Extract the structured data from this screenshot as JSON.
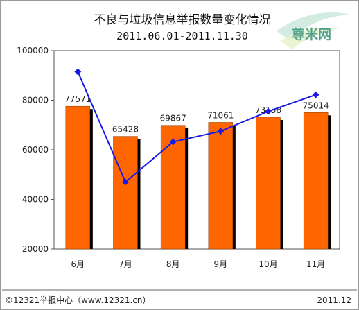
{
  "chart_data": {
    "type": "bar",
    "title": "不良与垃圾信息举报数量变化情况",
    "subtitle": "2011.06.01-2011.11.30",
    "categories": [
      "6月",
      "7月",
      "8月",
      "9月",
      "10月",
      "11月"
    ],
    "series": [
      {
        "type": "bar",
        "values": [
          77571,
          65428,
          69867,
          71061,
          73158,
          75014
        ],
        "color": "#ff6600",
        "shadow_color": "#000000"
      },
      {
        "type": "line",
        "values": [
          91500,
          47000,
          63200,
          67500,
          75500,
          82200
        ],
        "color": "#1a1ae6"
      }
    ],
    "ylim": [
      20000,
      100000
    ],
    "yticks": [
      20000,
      40000,
      60000,
      80000,
      100000
    ],
    "ytick_labels": [
      "20000",
      "40000",
      "60000",
      "80000",
      "100000"
    ],
    "data_labels": [
      "77571",
      "65428",
      "69867",
      "71061",
      "73158",
      "75014"
    ],
    "grid": false,
    "legend": "none"
  },
  "footer": {
    "left": "©12321举报中心（www.12321.cn）",
    "right": "2011.12"
  },
  "watermark": {
    "text": "尊米网",
    "color": "#4fa08a"
  }
}
